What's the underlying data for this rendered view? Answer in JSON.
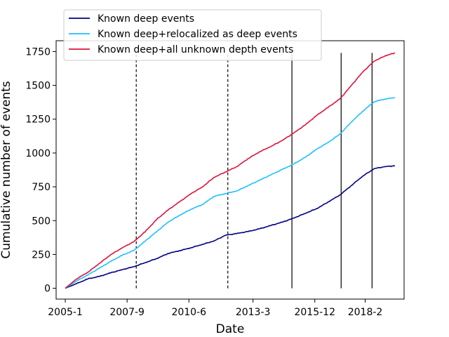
{
  "chart_data": {
    "type": "line",
    "title": "",
    "xlabel": "Date",
    "ylabel": "Cumulative number of events",
    "xlim": [
      2004.6,
      2019.8
    ],
    "ylim": [
      -80,
      1830
    ],
    "x_ticks": [
      {
        "value": 2005.0,
        "label": "2005-1"
      },
      {
        "value": 2007.7,
        "label": "2007-9"
      },
      {
        "value": 2010.4,
        "label": "2010-6"
      },
      {
        "value": 2013.2,
        "label": "2013-3"
      },
      {
        "value": 2015.9,
        "label": "2015-12"
      },
      {
        "value": 2018.1,
        "label": "2018-2"
      }
    ],
    "y_ticks": [
      0,
      250,
      500,
      750,
      1000,
      1250,
      1500,
      1750
    ],
    "legend_position": "top-left",
    "vertical_lines": [
      {
        "x": 2008.1,
        "style": "dashed"
      },
      {
        "x": 2012.1,
        "style": "dashed"
      },
      {
        "x": 2014.9,
        "style": "solid"
      },
      {
        "x": 2017.05,
        "style": "solid"
      },
      {
        "x": 2018.4,
        "style": "solid"
      }
    ],
    "vertical_line_top": 1740,
    "series": [
      {
        "name": "Known deep events",
        "color": "#000080",
        "x": [
          2005.0,
          2005.5,
          2006.0,
          2006.5,
          2007.0,
          2007.5,
          2008.0,
          2008.5,
          2009.0,
          2009.5,
          2010.0,
          2010.5,
          2011.0,
          2011.5,
          2012.0,
          2012.5,
          2013.0,
          2013.5,
          2014.0,
          2014.5,
          2015.0,
          2015.5,
          2016.0,
          2016.5,
          2017.0,
          2017.5,
          2018.0,
          2018.5,
          2019.0,
          2019.4
        ],
        "values": [
          0,
          35,
          70,
          88,
          115,
          138,
          160,
          190,
          220,
          258,
          278,
          300,
          325,
          350,
          392,
          405,
          420,
          440,
          465,
          490,
          520,
          555,
          590,
          640,
          690,
          760,
          830,
          885,
          900,
          905
        ]
      },
      {
        "name": "Known deep+relocalized as deep events",
        "color": "#1fbfff",
        "x": [
          2005.0,
          2005.5,
          2006.0,
          2006.5,
          2007.0,
          2007.5,
          2008.0,
          2008.5,
          2009.0,
          2009.5,
          2010.0,
          2010.5,
          2011.0,
          2011.5,
          2012.0,
          2012.5,
          2013.0,
          2013.5,
          2014.0,
          2014.5,
          2015.0,
          2015.5,
          2016.0,
          2016.5,
          2017.0,
          2017.5,
          2018.0,
          2018.5,
          2019.0,
          2019.4
        ],
        "values": [
          0,
          55,
          100,
          150,
          200,
          245,
          280,
          350,
          420,
          490,
          540,
          585,
          620,
          680,
          700,
          720,
          760,
          800,
          840,
          880,
          920,
          970,
          1030,
          1080,
          1140,
          1230,
          1310,
          1380,
          1400,
          1410
        ]
      },
      {
        "name": "Known deep+all unknown depth events",
        "color": "#dc143c",
        "x": [
          2005.0,
          2005.5,
          2006.0,
          2006.5,
          2007.0,
          2007.5,
          2008.0,
          2008.5,
          2009.0,
          2009.5,
          2010.0,
          2010.5,
          2011.0,
          2011.5,
          2012.0,
          2012.5,
          2013.0,
          2013.5,
          2014.0,
          2014.5,
          2015.0,
          2015.5,
          2016.0,
          2016.5,
          2017.0,
          2017.5,
          2018.0,
          2018.5,
          2019.0,
          2019.4
        ],
        "values": [
          0,
          70,
          120,
          185,
          250,
          300,
          345,
          420,
          510,
          580,
          640,
          700,
          750,
          820,
          860,
          900,
          960,
          1010,
          1050,
          1095,
          1150,
          1210,
          1280,
          1340,
          1400,
          1500,
          1600,
          1680,
          1720,
          1740
        ]
      }
    ]
  }
}
